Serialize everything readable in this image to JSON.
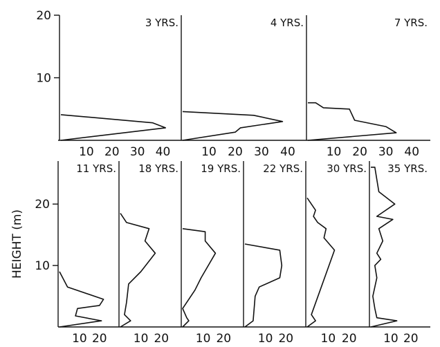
{
  "chart_data": {
    "type": "line",
    "ylabel": "HEIGHT (m)",
    "panels": [
      {
        "label": "3 YRS.",
        "row": 0,
        "xlim": [
          0,
          45
        ],
        "ylim": [
          0,
          20
        ],
        "xticks": [
          "10",
          "20",
          "30",
          "40"
        ],
        "yticks": [
          "20",
          "10"
        ],
        "profile": [
          [
            0,
            0
          ],
          [
            41,
            2
          ],
          [
            36,
            2.8
          ],
          [
            0,
            4.1
          ]
        ]
      },
      {
        "label": "4 YRS.",
        "row": 0,
        "xlim": [
          0,
          45
        ],
        "ylim": [
          0,
          20
        ],
        "xticks": [
          "10",
          "20",
          "30",
          "40"
        ],
        "yticks": [],
        "profile": [
          [
            0,
            0
          ],
          [
            20,
            1.3
          ],
          [
            22,
            2
          ],
          [
            38,
            3
          ],
          [
            27,
            4
          ],
          [
            0,
            4.6
          ]
        ]
      },
      {
        "label": "7 YRS.",
        "row": 0,
        "xlim": [
          0,
          45
        ],
        "ylim": [
          0,
          20
        ],
        "xticks": [
          "10",
          "20",
          "30",
          "40"
        ],
        "yticks": [],
        "profile": [
          [
            0,
            0
          ],
          [
            34,
            1.2
          ],
          [
            30,
            2.2
          ],
          [
            18,
            3.2
          ],
          [
            16,
            5
          ],
          [
            6,
            5.2
          ],
          [
            3,
            6
          ],
          [
            0,
            6
          ]
        ]
      },
      {
        "label": "11 YRS.",
        "row": 1,
        "xlim": [
          0,
          27
        ],
        "ylim": [
          0,
          27
        ],
        "xticks": [
          "10",
          "20"
        ],
        "yticks": [
          "20",
          "10"
        ],
        "profile": [
          [
            0,
            0
          ],
          [
            21,
            1
          ],
          [
            8,
            1.8
          ],
          [
            9,
            3
          ],
          [
            20,
            3.5
          ],
          [
            22,
            4.5
          ],
          [
            4,
            6.5
          ],
          [
            0,
            9
          ]
        ]
      },
      {
        "label": "18 YRS.",
        "row": 1,
        "xlim": [
          0,
          27
        ],
        "ylim": [
          0,
          27
        ],
        "xticks": [
          "10",
          "20"
        ],
        "yticks": [],
        "profile": [
          [
            0,
            0
          ],
          [
            5,
            1
          ],
          [
            2,
            2
          ],
          [
            3,
            4
          ],
          [
            4,
            7
          ],
          [
            10,
            9
          ],
          [
            17,
            12
          ],
          [
            12,
            14
          ],
          [
            14,
            16
          ],
          [
            3,
            17
          ],
          [
            0,
            18.5
          ]
        ]
      },
      {
        "label": "19 YRS.",
        "row": 1,
        "xlim": [
          0,
          27
        ],
        "ylim": [
          0,
          27
        ],
        "xticks": [
          "10",
          "20"
        ],
        "yticks": [],
        "profile": [
          [
            0,
            0
          ],
          [
            3,
            1
          ],
          [
            2,
            1.5
          ],
          [
            0,
            3
          ],
          [
            6,
            6
          ],
          [
            9,
            8
          ],
          [
            16,
            12
          ],
          [
            11,
            14
          ],
          [
            11,
            15.5
          ],
          [
            0,
            16
          ]
        ]
      },
      {
        "label": "22 YRS.",
        "row": 1,
        "xlim": [
          0,
          27
        ],
        "ylim": [
          0,
          27
        ],
        "xticks": [
          "10",
          "20"
        ],
        "yticks": [],
        "profile": [
          [
            0,
            0
          ],
          [
            2,
            0.5
          ],
          [
            4,
            1
          ],
          [
            5,
            5
          ],
          [
            7,
            6.5
          ],
          [
            17,
            8
          ],
          [
            18,
            10
          ],
          [
            17,
            12.5
          ],
          [
            0,
            13.5
          ]
        ]
      },
      {
        "label": "30 YRS.",
        "row": 1,
        "xlim": [
          0,
          27
        ],
        "ylim": [
          0,
          27
        ],
        "xticks": [
          "10",
          "20"
        ],
        "yticks": [],
        "profile": [
          [
            0,
            0
          ],
          [
            4,
            1
          ],
          [
            2,
            2
          ],
          [
            13,
            12.5
          ],
          [
            8,
            14.5
          ],
          [
            9,
            16
          ],
          [
            5,
            17
          ],
          [
            3,
            18
          ],
          [
            4,
            19
          ],
          [
            0,
            21
          ]
        ]
      },
      {
        "label": "35 YRS.",
        "row": 1,
        "xlim": [
          0,
          27
        ],
        "ylim": [
          0,
          27
        ],
        "xticks": [
          "10",
          "20"
        ],
        "yticks": [],
        "profile": [
          [
            0,
            0
          ],
          [
            13,
            1
          ],
          [
            3,
            1.5
          ],
          [
            2,
            3
          ],
          [
            1,
            5
          ],
          [
            3,
            8
          ],
          [
            2,
            10
          ],
          [
            5,
            11
          ],
          [
            3,
            12
          ],
          [
            6,
            14
          ],
          [
            4,
            16
          ],
          [
            11,
            17.5
          ],
          [
            3,
            18
          ],
          [
            12,
            20
          ],
          [
            4,
            22
          ],
          [
            3,
            24
          ],
          [
            2,
            26
          ],
          [
            0,
            26
          ]
        ]
      }
    ]
  }
}
